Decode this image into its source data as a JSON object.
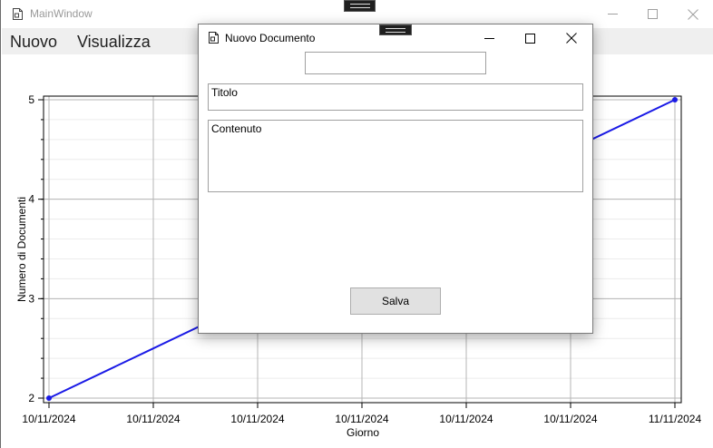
{
  "main_window": {
    "title": "MainWindow",
    "menu": [
      "Nuovo",
      "Visualizza"
    ]
  },
  "chart_data": {
    "type": "line",
    "x_categories": [
      "10/11/2024",
      "10/11/2024",
      "10/11/2024",
      "10/11/2024",
      "10/11/2024",
      "10/11/2024",
      "11/11/2024"
    ],
    "values": [
      2,
      2.5,
      3,
      3.5,
      4,
      4.5,
      5
    ],
    "xlabel": "Giorno",
    "ylabel": "Numero di Documenti",
    "ylim": [
      2,
      5
    ],
    "y_ticks": [
      "2",
      "3",
      "4",
      "5"
    ],
    "grid": true,
    "line_color": "#1a1ae6"
  },
  "dialog": {
    "title": "Nuovo Documento",
    "top_field_value": "",
    "title_field_value": "Titolo",
    "content_field_value": "Contenuto",
    "save_label": "Salva"
  }
}
